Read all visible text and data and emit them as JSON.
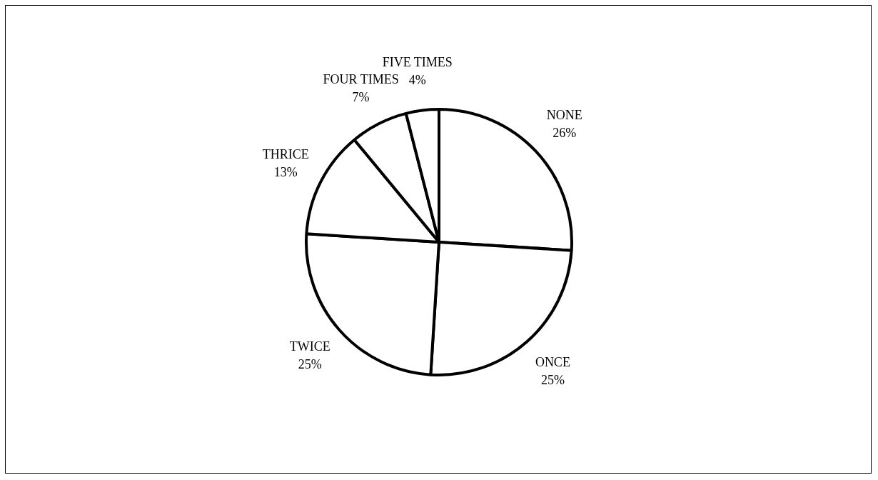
{
  "chart_data": {
    "type": "pie",
    "categories": [
      "NONE",
      "ONCE",
      "TWICE",
      "THRICE",
      "FOUR TIMES",
      "FIVE TIMES"
    ],
    "values": [
      26,
      25,
      25,
      13,
      7,
      4
    ],
    "value_labels": [
      "26%",
      "25%",
      "25%",
      "13%",
      "7%",
      "4%"
    ],
    "colors": [
      "#ffffff",
      "#ffffff",
      "#ffffff",
      "#ffffff",
      "#ffffff",
      "#ffffff"
    ],
    "legend": false
  }
}
